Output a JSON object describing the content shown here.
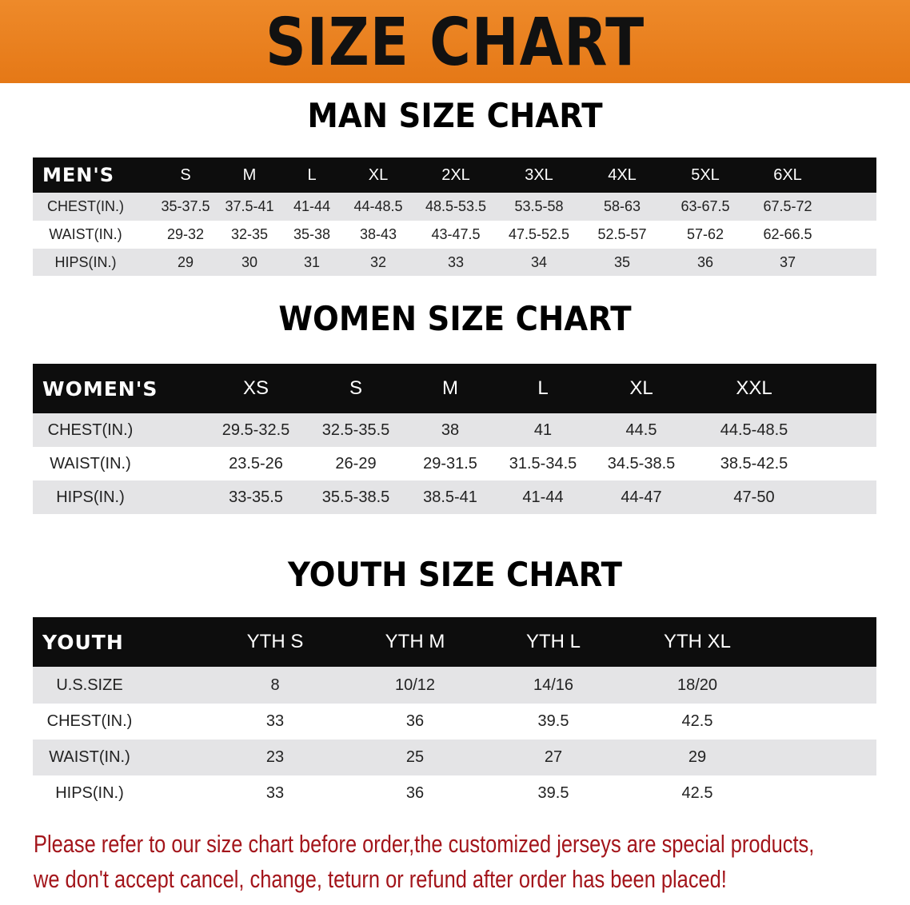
{
  "banner_title": "SIZE CHART",
  "men": {
    "title": "MAN SIZE CHART",
    "header": [
      "MEN'S",
      "S",
      "M",
      "L",
      "XL",
      "2XL",
      "3XL",
      "4XL",
      "5XL",
      "6XL"
    ],
    "rows": [
      [
        "CHEST(IN.)",
        "35-37.5",
        "37.5-41",
        "41-44",
        "44-48.5",
        "48.5-53.5",
        "53.5-58",
        "58-63",
        "63-67.5",
        "67.5-72"
      ],
      [
        "WAIST(IN.)",
        "29-32",
        "32-35",
        "35-38",
        "38-43",
        "43-47.5",
        "47.5-52.5",
        "52.5-57",
        "57-62",
        "62-66.5"
      ],
      [
        "HIPS(IN.)",
        "29",
        "30",
        "31",
        "32",
        "33",
        "34",
        "35",
        "36",
        "37"
      ]
    ]
  },
  "women": {
    "title": "WOMEN SIZE CHART",
    "header": [
      "WOMEN'S",
      "XS",
      "S",
      "M",
      "L",
      "XL",
      "XXL"
    ],
    "rows": [
      [
        "CHEST(IN.)",
        "29.5-32.5",
        "32.5-35.5",
        "38",
        "41",
        "44.5",
        "44.5-48.5"
      ],
      [
        "WAIST(IN.)",
        "23.5-26",
        "26-29",
        "29-31.5",
        "31.5-34.5",
        "34.5-38.5",
        "38.5-42.5"
      ],
      [
        "HIPS(IN.)",
        "33-35.5",
        "35.5-38.5",
        "38.5-41",
        "41-44",
        "44-47",
        "47-50"
      ]
    ]
  },
  "youth": {
    "title": "YOUTH SIZE CHART",
    "header": [
      "YOUTH",
      "YTH S",
      "YTH M",
      "YTH L",
      "YTH XL"
    ],
    "rows": [
      [
        "U.S.SIZE",
        "8",
        "10/12",
        "14/16",
        "18/20"
      ],
      [
        "CHEST(IN.)",
        "33",
        "36",
        "39.5",
        "42.5"
      ],
      [
        "WAIST(IN.)",
        "23",
        "25",
        "27",
        "29"
      ],
      [
        "HIPS(IN.)",
        "33",
        "36",
        "39.5",
        "42.5"
      ]
    ]
  },
  "notice": {
    "line1": "Please refer to our size chart before order,the customized jerseys are special products,",
    "line2": "we don't accept cancel, change, teturn or refund after order has been placed!"
  },
  "colors": {
    "banner": "#e8801e",
    "header_row": "#0d0d0d",
    "stripe": "#e4e4e6",
    "notice": "#a3151b"
  }
}
